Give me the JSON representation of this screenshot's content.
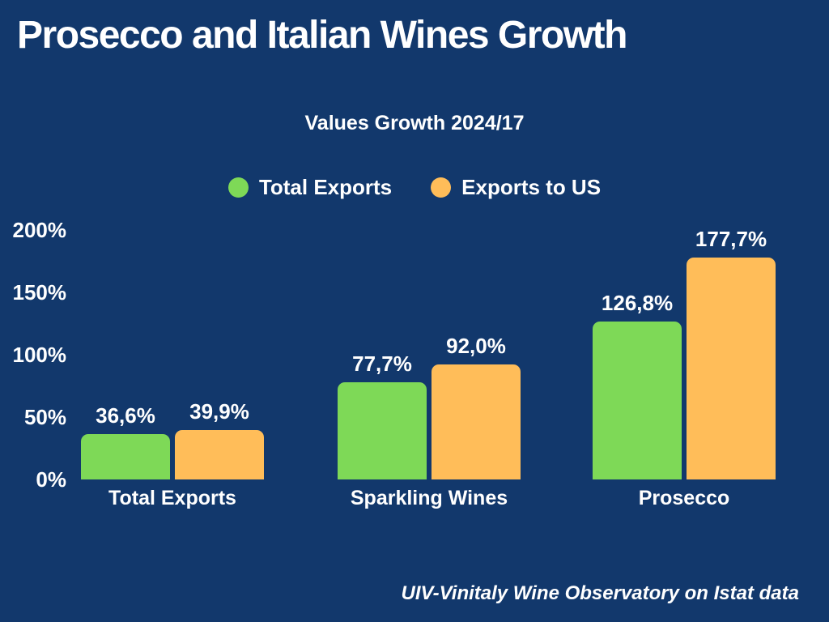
{
  "page": {
    "background_color": "#12386C",
    "text_color": "#FFFFFF"
  },
  "header": {
    "title": "Prosecco and Italian Wines Growth"
  },
  "chart_data": {
    "type": "bar",
    "title": "Values Growth 2024/17",
    "categories": [
      "Total Exports",
      "Sparkling Wines",
      "Prosecco"
    ],
    "series": [
      {
        "name": "Total Exports",
        "color": "#7ED957",
        "values": [
          36.6,
          77.7,
          126.8
        ],
        "value_labels": [
          "36,6%",
          "77,7%",
          "126,8%"
        ]
      },
      {
        "name": "Exports to US",
        "color": "#FFBD59",
        "values": [
          39.9,
          92.0,
          177.7
        ],
        "value_labels": [
          "39,9%",
          "92,0%",
          "177,7%"
        ]
      }
    ],
    "y_axis": {
      "ticks": [
        0,
        50,
        100,
        150,
        200
      ],
      "tick_labels": [
        "0%",
        "50%",
        "100%",
        "150%",
        "200%"
      ],
      "ylim": [
        0,
        200
      ]
    },
    "grid": false,
    "legend_position": "top-center"
  },
  "footer": {
    "source": "UIV-Vinitaly Wine Observatory on Istat data"
  }
}
